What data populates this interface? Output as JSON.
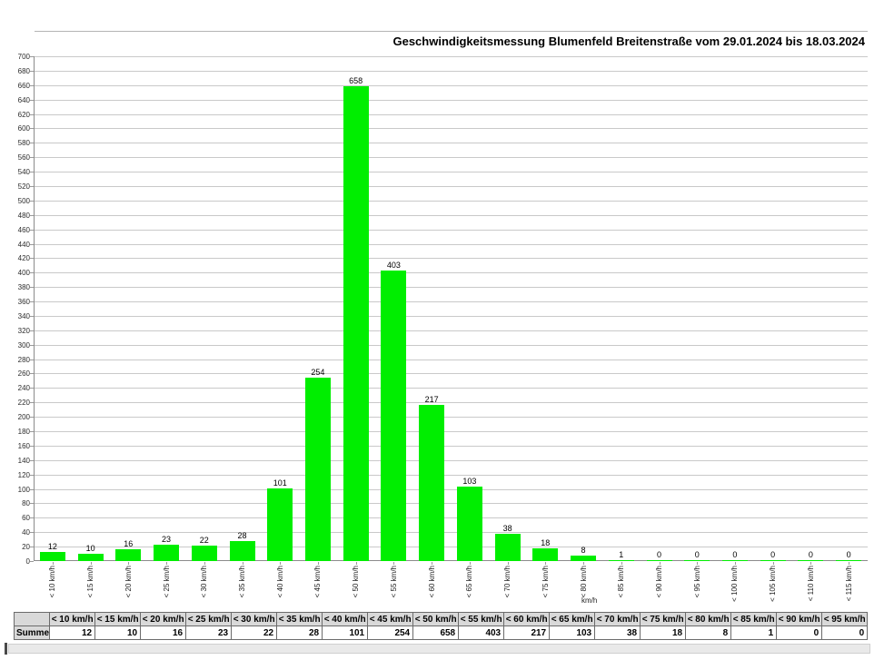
{
  "title": "Geschwindigkeitsmessung Blumenfeld Breitenstraße vom 29.01.2024 bis 18.03.2024",
  "chart_data": {
    "type": "bar",
    "title": "Geschwindigkeitsmessung Blumenfeld Breitenstraße vom 29.01.2024 bis 18.03.2024",
    "categories": [
      "< 10 km/h",
      "< 15 km/h",
      "< 20 km/h",
      "< 25 km/h",
      "< 30 km/h",
      "< 35 km/h",
      "< 40 km/h",
      "< 45 km/h",
      "< 50 km/h",
      "< 55 km/h",
      "< 60 km/h",
      "< 65 km/h",
      "< 70 km/h",
      "< 75 km/h",
      "< 80 km/h",
      "< 85 km/h",
      "< 90 km/h",
      "< 95 km/h",
      "< 100 km/h",
      "< 105 km/h",
      "< 110 km/h",
      "< 115 km/h"
    ],
    "values": [
      12,
      10,
      16,
      23,
      22,
      28,
      101,
      254,
      658,
      403,
      217,
      103,
      38,
      18,
      8,
      1,
      0,
      0,
      0,
      0,
      0,
      0
    ],
    "xlabel": "km/h",
    "ylabel": "",
    "ylim": [
      0,
      700
    ],
    "ytick_step": 20,
    "grid": true,
    "value_labels": true,
    "bar_color": "#00ee00",
    "gridline_color": "#c9c9c9",
    "legend": "none"
  },
  "table": {
    "corner_label": "",
    "row_label": "Summe",
    "columns": [
      "< 10 km/h",
      "< 15 km/h",
      "< 20 km/h",
      "< 25 km/h",
      "< 30 km/h",
      "< 35 km/h",
      "< 40 km/h",
      "< 45 km/h",
      "< 50 km/h",
      "< 55 km/h",
      "< 60 km/h",
      "< 65 km/h",
      "< 70 km/h",
      "< 75 km/h",
      "< 80 km/h",
      "< 85 km/h",
      "< 90 km/h",
      "< 95 km/h"
    ],
    "values": [
      12,
      10,
      16,
      23,
      22,
      28,
      101,
      254,
      658,
      403,
      217,
      103,
      38,
      18,
      8,
      1,
      0,
      0
    ]
  }
}
